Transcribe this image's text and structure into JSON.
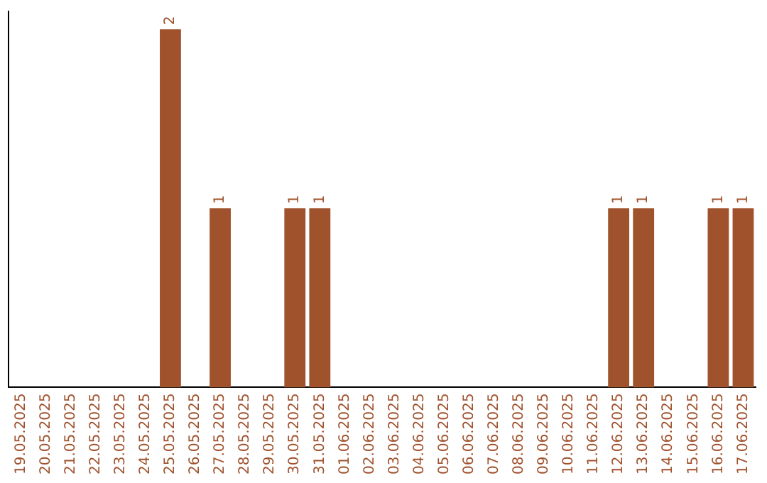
{
  "chart_data": {
    "type": "bar",
    "categories": [
      "19.05.2025",
      "20.05.2025",
      "21.05.2025",
      "22.05.2025",
      "23.05.2025",
      "24.05.2025",
      "25.05.2025",
      "26.05.2025",
      "27.05.2025",
      "28.05.2025",
      "29.05.2025",
      "30.05.2025",
      "31.05.2025",
      "01.06.2025",
      "02.06.2025",
      "03.06.2025",
      "04.06.2025",
      "05.06.2025",
      "06.06.2025",
      "07.06.2025",
      "08.06.2025",
      "09.06.2025",
      "10.06.2025",
      "11.06.2025",
      "12.06.2025",
      "13.06.2025",
      "14.06.2025",
      "15.06.2025",
      "16.06.2025",
      "17.06.2025"
    ],
    "values": [
      0,
      0,
      0,
      0,
      0,
      0,
      2,
      0,
      1,
      0,
      0,
      1,
      1,
      0,
      0,
      0,
      0,
      0,
      0,
      0,
      0,
      0,
      0,
      0,
      1,
      1,
      0,
      0,
      1,
      1
    ],
    "value_labels": [
      null,
      null,
      null,
      null,
      null,
      null,
      "2",
      null,
      "1",
      null,
      null,
      "1",
      "1",
      null,
      null,
      null,
      null,
      null,
      null,
      null,
      null,
      null,
      null,
      null,
      "1",
      "1",
      null,
      null,
      "1",
      "1"
    ],
    "color": "#a0522d",
    "ylim": [
      0,
      2.1
    ],
    "tick_labels": "x"
  }
}
